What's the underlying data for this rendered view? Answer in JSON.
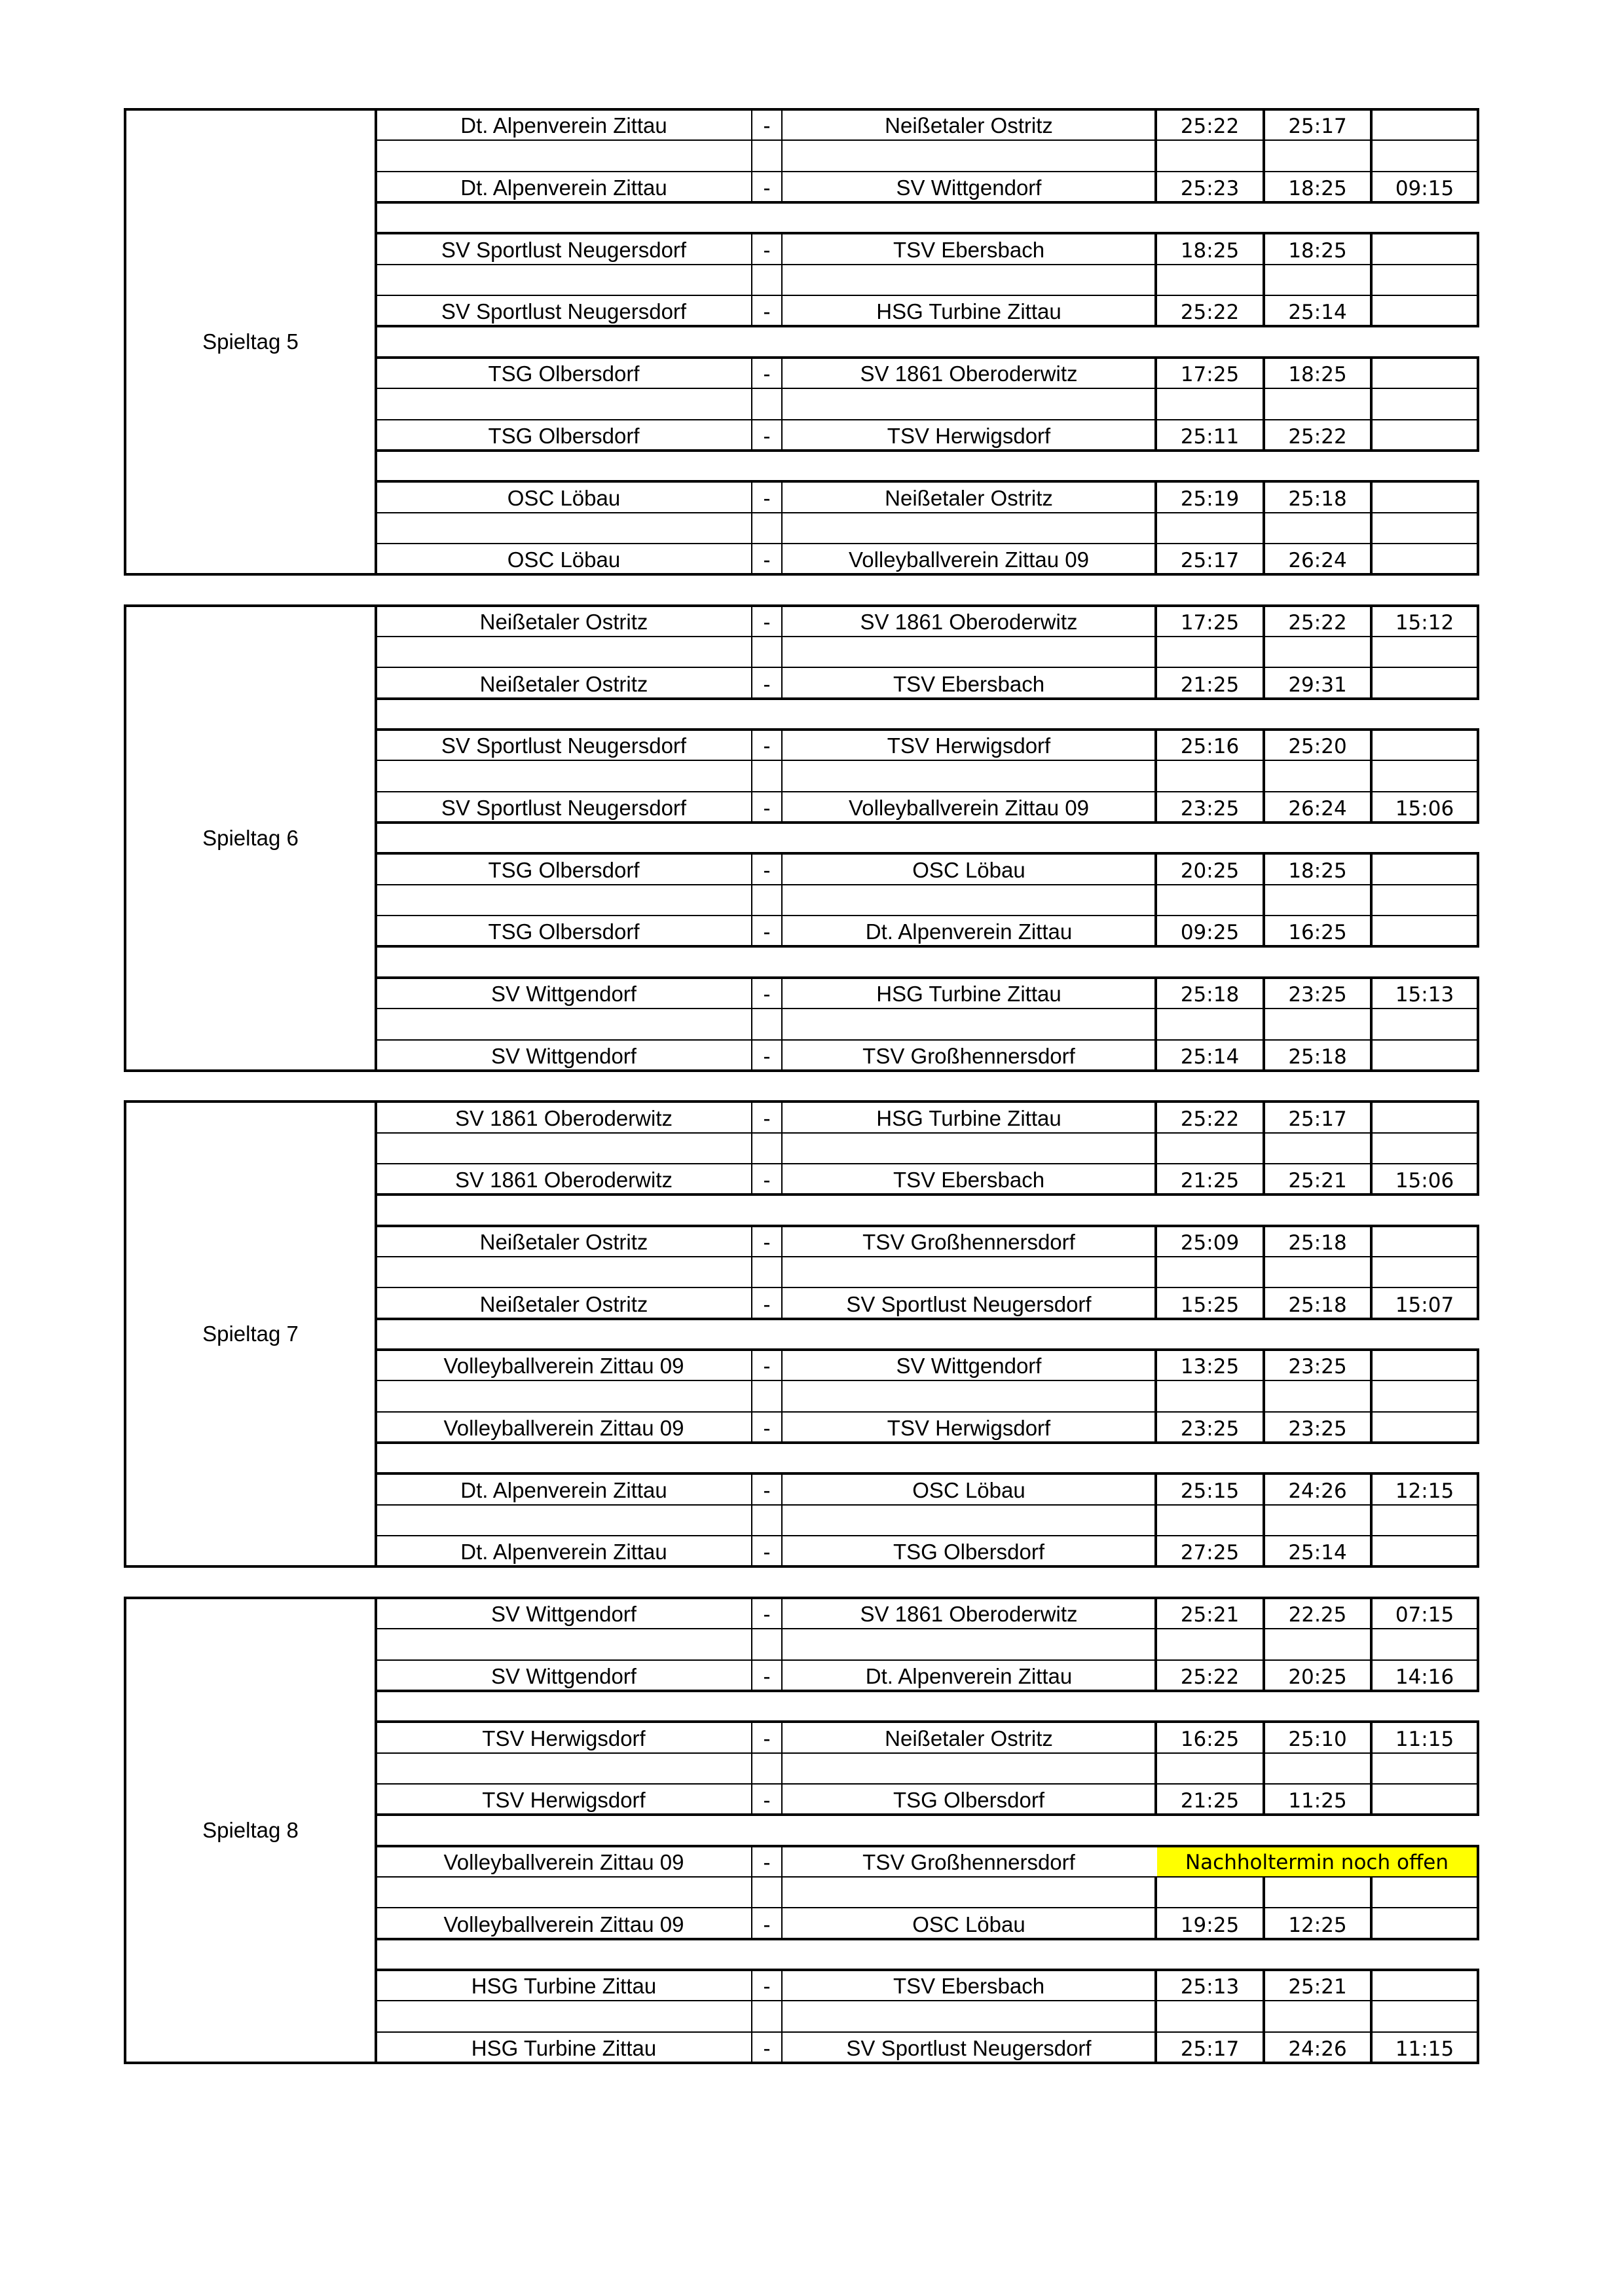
{
  "highlight_color": "#ffff00",
  "blocks": [
    {
      "label": "Spieltag 5",
      "groups": [
        [
          {
            "home": "Dt. Alpenverein Zittau",
            "sep": "-",
            "away": "Neißetaler Ostritz",
            "sets": [
              "25:22",
              "25:17",
              ""
            ]
          },
          {
            "home": "Dt. Alpenverein Zittau",
            "sep": "-",
            "away": "SV Wittgendorf",
            "sets": [
              "25:23",
              "18:25",
              "09:15"
            ]
          }
        ],
        [
          {
            "home": "SV Sportlust Neugersdorf",
            "sep": "-",
            "away": "TSV Ebersbach",
            "sets": [
              "18:25",
              "18:25",
              ""
            ]
          },
          {
            "home": "SV Sportlust Neugersdorf",
            "sep": "-",
            "away": "HSG Turbine Zittau",
            "sets": [
              "25:22",
              "25:14",
              ""
            ]
          }
        ],
        [
          {
            "home": "TSG Olbersdorf",
            "sep": "-",
            "away": "SV 1861 Oberoderwitz",
            "sets": [
              "17:25",
              "18:25",
              ""
            ]
          },
          {
            "home": "TSG Olbersdorf",
            "sep": "-",
            "away": "TSV Herwigsdorf",
            "sets": [
              "25:11",
              "25:22",
              ""
            ]
          }
        ],
        [
          {
            "home": "OSC Löbau",
            "sep": "-",
            "away": "Neißetaler Ostritz",
            "sets": [
              "25:19",
              "25:18",
              ""
            ]
          },
          {
            "home": "OSC Löbau",
            "sep": "-",
            "away": "Volleyballverein Zittau 09",
            "sets": [
              "25:17",
              "26:24",
              ""
            ]
          }
        ]
      ]
    },
    {
      "label": "Spieltag 6",
      "groups": [
        [
          {
            "home": "Neißetaler Ostritz",
            "sep": "-",
            "away": "SV 1861 Oberoderwitz",
            "sets": [
              "17:25",
              "25:22",
              "15:12"
            ]
          },
          {
            "home": "Neißetaler Ostritz",
            "sep": "-",
            "away": "TSV Ebersbach",
            "sets": [
              "21:25",
              "29:31",
              ""
            ]
          }
        ],
        [
          {
            "home": "SV Sportlust Neugersdorf",
            "sep": "-",
            "away": "TSV Herwigsdorf",
            "sets": [
              "25:16",
              "25:20",
              ""
            ]
          },
          {
            "home": "SV Sportlust Neugersdorf",
            "sep": "-",
            "away": "Volleyballverein Zittau 09",
            "sets": [
              "23:25",
              "26:24",
              "15:06"
            ]
          }
        ],
        [
          {
            "home": "TSG Olbersdorf",
            "sep": "-",
            "away": "OSC Löbau",
            "sets": [
              "20:25",
              "18:25",
              ""
            ]
          },
          {
            "home": "TSG Olbersdorf",
            "sep": "-",
            "away": "Dt. Alpenverein Zittau",
            "sets": [
              "09:25",
              "16:25",
              ""
            ]
          }
        ],
        [
          {
            "home": "SV Wittgendorf",
            "sep": "-",
            "away": "HSG Turbine Zittau",
            "sets": [
              "25:18",
              "23:25",
              "15:13"
            ]
          },
          {
            "home": "SV Wittgendorf",
            "sep": "-",
            "away": "TSV Großhennersdorf",
            "sets": [
              "25:14",
              "25:18",
              ""
            ]
          }
        ]
      ]
    },
    {
      "label": "Spieltag 7",
      "groups": [
        [
          {
            "home": "SV 1861 Oberoderwitz",
            "sep": "-",
            "away": "HSG Turbine Zittau",
            "sets": [
              "25:22",
              "25:17",
              ""
            ]
          },
          {
            "home": "SV 1861 Oberoderwitz",
            "sep": "-",
            "away": "TSV Ebersbach",
            "sets": [
              "21:25",
              "25:21",
              "15:06"
            ]
          }
        ],
        [
          {
            "home": "Neißetaler Ostritz",
            "sep": "-",
            "away": "TSV Großhennersdorf",
            "sets": [
              "25:09",
              "25:18",
              ""
            ]
          },
          {
            "home": "Neißetaler Ostritz",
            "sep": "-",
            "away": "SV Sportlust Neugersdorf",
            "sets": [
              "15:25",
              "25:18",
              "15:07"
            ]
          }
        ],
        [
          {
            "home": "Volleyballverein Zittau 09",
            "sep": "-",
            "away": "SV Wittgendorf",
            "sets": [
              "13:25",
              "23:25",
              ""
            ]
          },
          {
            "home": "Volleyballverein Zittau 09",
            "sep": "-",
            "away": "TSV Herwigsdorf",
            "sets": [
              "23:25",
              "23:25",
              ""
            ]
          }
        ],
        [
          {
            "home": "Dt. Alpenverein Zittau",
            "sep": "-",
            "away": "OSC Löbau",
            "sets": [
              "25:15",
              "24:26",
              "12:15"
            ]
          },
          {
            "home": "Dt. Alpenverein Zittau",
            "sep": "-",
            "away": "TSG Olbersdorf",
            "sets": [
              "27:25",
              "25:14",
              ""
            ]
          }
        ]
      ]
    },
    {
      "label": "Spieltag 8",
      "groups": [
        [
          {
            "home": "SV Wittgendorf",
            "sep": "-",
            "away": "SV 1861 Oberoderwitz",
            "sets": [
              "25:21",
              "22.25",
              "07:15"
            ]
          },
          {
            "home": "SV Wittgendorf",
            "sep": "-",
            "away": "Dt. Alpenverein Zittau",
            "sets": [
              "25:22",
              "20:25",
              "14:16"
            ]
          }
        ],
        [
          {
            "home": "TSV Herwigsdorf",
            "sep": "-",
            "away": "Neißetaler Ostritz",
            "sets": [
              "16:25",
              "25:10",
              "11:15"
            ]
          },
          {
            "home": "TSV Herwigsdorf",
            "sep": "-",
            "away": "TSG Olbersdorf",
            "sets": [
              "21:25",
              "11:25",
              ""
            ]
          }
        ],
        [
          {
            "home": "Volleyballverein Zittau 09",
            "sep": "-",
            "away": "TSV Großhennersdorf",
            "note": "Nachholtermin noch offen"
          },
          {
            "home": "Volleyballverein Zittau 09",
            "sep": "-",
            "away": "OSC Löbau",
            "sets": [
              "19:25",
              "12:25",
              ""
            ]
          }
        ],
        [
          {
            "home": "HSG Turbine Zittau",
            "sep": "-",
            "away": "TSV Ebersbach",
            "sets": [
              "25:13",
              "25:21",
              ""
            ]
          },
          {
            "home": "HSG Turbine Zittau",
            "sep": "-",
            "away": "SV Sportlust Neugersdorf",
            "sets": [
              "25:17",
              "24:26",
              "11:15"
            ]
          }
        ]
      ]
    }
  ]
}
